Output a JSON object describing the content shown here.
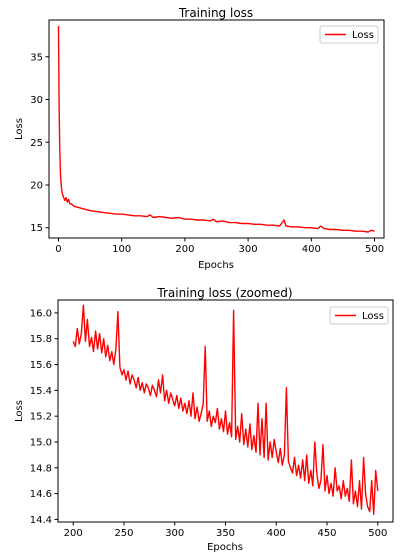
{
  "chart_data": [
    {
      "type": "line",
      "title": "Training loss",
      "xlabel": "Epochs",
      "ylabel": "Loss",
      "xlim": [
        -15,
        515
      ],
      "ylim": [
        13.8,
        39.3
      ],
      "xticks": [
        0,
        100,
        200,
        300,
        400,
        500
      ],
      "xtick_labels": [
        "0",
        "100",
        "200",
        "300",
        "400",
        "500"
      ],
      "yticks": [
        15,
        20,
        25,
        30,
        35
      ],
      "ytick_labels": [
        "15",
        "20",
        "25",
        "30",
        "35"
      ],
      "grid": false,
      "legend": "top-right",
      "series": [
        {
          "name": "Loss",
          "color": "#ff0000",
          "x": [
            0,
            1,
            2,
            3,
            4,
            5,
            6,
            8,
            10,
            12,
            14,
            16,
            18,
            20,
            25,
            30,
            35,
            40,
            45,
            50,
            60,
            70,
            80,
            90,
            100,
            110,
            120,
            130,
            140,
            145,
            150,
            160,
            170,
            180,
            190,
            200,
            210,
            220,
            230,
            240,
            245,
            250,
            260,
            270,
            280,
            290,
            300,
            310,
            320,
            330,
            340,
            350,
            357,
            360,
            370,
            380,
            390,
            400,
            410,
            415,
            420,
            430,
            440,
            450,
            460,
            470,
            480,
            490,
            495,
            500
          ],
          "y": [
            38.6,
            29.5,
            24.5,
            21.5,
            20.3,
            19.5,
            19.0,
            18.6,
            18.2,
            18.5,
            18.0,
            18.3,
            17.8,
            17.8,
            17.5,
            17.4,
            17.3,
            17.2,
            17.1,
            17.0,
            16.9,
            16.8,
            16.7,
            16.6,
            16.6,
            16.5,
            16.4,
            16.4,
            16.3,
            16.5,
            16.2,
            16.3,
            16.2,
            16.1,
            16.2,
            16.0,
            16.0,
            15.9,
            15.9,
            15.8,
            16.0,
            15.7,
            15.8,
            15.6,
            15.6,
            15.5,
            15.5,
            15.4,
            15.4,
            15.3,
            15.3,
            15.2,
            15.9,
            15.2,
            15.1,
            15.1,
            15.0,
            15.0,
            14.9,
            15.2,
            14.9,
            14.8,
            14.8,
            14.7,
            14.7,
            14.6,
            14.6,
            14.5,
            14.7,
            14.6
          ]
        }
      ]
    },
    {
      "type": "line",
      "title": "Training loss (zoomed)",
      "xlabel": "Epochs",
      "ylabel": "Loss",
      "xlim": [
        185,
        515
      ],
      "ylim": [
        14.38,
        16.1
      ],
      "xticks": [
        200,
        250,
        300,
        350,
        400,
        450,
        500
      ],
      "xtick_labels": [
        "200",
        "250",
        "300",
        "350",
        "400",
        "450",
        "500"
      ],
      "yticks": [
        14.4,
        14.6,
        14.8,
        15.0,
        15.2,
        15.4,
        15.6,
        15.8,
        16.0
      ],
      "ytick_labels": [
        "14.4",
        "14.6",
        "14.8",
        "15.0",
        "15.2",
        "15.4",
        "15.6",
        "15.8",
        "16.0"
      ],
      "grid": false,
      "legend": "top-right",
      "series": [
        {
          "name": "Loss",
          "color": "#ff0000",
          "x": [
            200,
            202,
            204,
            206,
            208,
            210,
            212,
            214,
            216,
            218,
            220,
            222,
            224,
            226,
            228,
            230,
            232,
            234,
            236,
            238,
            240,
            242,
            244,
            246,
            248,
            250,
            252,
            254,
            256,
            258,
            260,
            262,
            264,
            266,
            268,
            270,
            272,
            274,
            276,
            278,
            280,
            282,
            284,
            286,
            288,
            290,
            292,
            294,
            296,
            298,
            300,
            302,
            304,
            306,
            308,
            310,
            312,
            314,
            316,
            318,
            320,
            322,
            324,
            326,
            328,
            330,
            332,
            334,
            336,
            338,
            340,
            342,
            344,
            346,
            348,
            350,
            352,
            354,
            356,
            358,
            360,
            362,
            364,
            366,
            368,
            370,
            372,
            374,
            376,
            378,
            380,
            382,
            384,
            386,
            388,
            390,
            392,
            394,
            396,
            398,
            400,
            402,
            404,
            406,
            408,
            410,
            412,
            414,
            416,
            418,
            420,
            422,
            424,
            426,
            428,
            430,
            432,
            434,
            436,
            438,
            440,
            442,
            444,
            446,
            448,
            450,
            452,
            454,
            456,
            458,
            460,
            462,
            464,
            466,
            468,
            470,
            472,
            474,
            476,
            478,
            480,
            482,
            484,
            486,
            488,
            490,
            492,
            494,
            496,
            498,
            500
          ],
          "y": [
            15.78,
            15.74,
            15.88,
            15.76,
            15.84,
            16.06,
            15.78,
            15.95,
            15.74,
            15.81,
            15.7,
            15.86,
            15.72,
            15.84,
            15.69,
            15.8,
            15.66,
            15.75,
            15.63,
            15.7,
            15.6,
            15.72,
            16.01,
            15.58,
            15.52,
            15.56,
            15.48,
            15.55,
            15.45,
            15.52,
            15.48,
            15.42,
            15.5,
            15.4,
            15.46,
            15.38,
            15.45,
            15.42,
            15.36,
            15.44,
            15.4,
            15.35,
            15.48,
            15.38,
            15.52,
            15.32,
            15.4,
            15.3,
            15.38,
            15.33,
            15.28,
            15.36,
            15.26,
            15.34,
            15.24,
            15.3,
            15.22,
            15.32,
            15.2,
            15.38,
            15.18,
            15.27,
            15.16,
            15.22,
            15.3,
            15.74,
            15.16,
            15.24,
            15.12,
            15.2,
            15.15,
            15.26,
            15.1,
            15.18,
            15.08,
            15.24,
            15.06,
            15.15,
            15.04,
            16.02,
            15.02,
            15.12,
            15.0,
            15.22,
            14.98,
            15.1,
            14.96,
            15.14,
            14.94,
            15.05,
            14.92,
            15.3,
            14.9,
            15.18,
            14.88,
            15.3,
            14.86,
            15.0,
            14.88,
            15.02,
            14.92,
            14.84,
            14.95,
            14.82,
            14.9,
            15.42,
            14.85,
            14.8,
            14.76,
            14.88,
            14.74,
            14.82,
            14.72,
            14.86,
            14.7,
            14.9,
            14.68,
            14.78,
            14.66,
            15.0,
            14.75,
            14.64,
            14.7,
            14.98,
            14.62,
            14.74,
            14.6,
            14.68,
            14.58,
            14.8,
            14.62,
            14.66,
            14.56,
            14.7,
            14.58,
            14.64,
            14.54,
            14.86,
            14.52,
            14.62,
            14.5,
            14.7,
            14.48,
            14.88,
            14.6,
            14.5,
            14.46,
            14.7,
            14.44,
            14.78,
            14.62
          ]
        }
      ]
    }
  ]
}
